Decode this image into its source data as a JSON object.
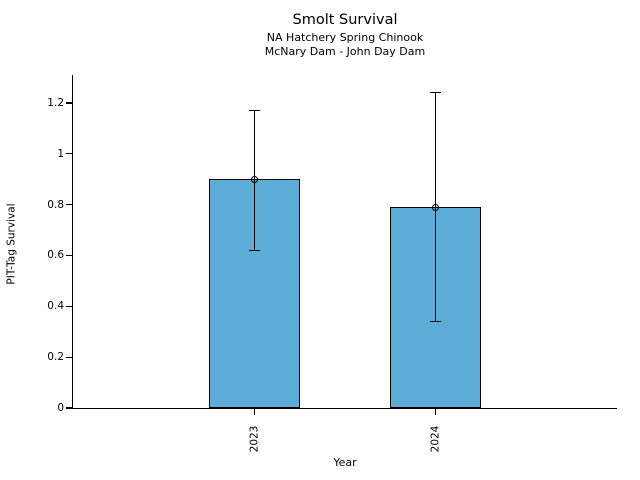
{
  "header": {
    "title": "Smolt Survival",
    "subtitle_line1": "NA Hatchery Spring Chinook",
    "subtitle_line2": "McNary Dam - John Day Dam"
  },
  "chart_data": {
    "type": "bar",
    "title": "Smolt Survival",
    "subtitle": [
      "NA Hatchery Spring Chinook",
      "McNary Dam - John Day Dam"
    ],
    "xlabel": "Year",
    "ylabel": "PIT-Tag Survival",
    "categories": [
      "2023",
      "2024"
    ],
    "values": [
      0.9,
      0.79
    ],
    "error_low": [
      0.62,
      0.34
    ],
    "error_high": [
      1.17,
      1.24
    ],
    "marker": "open-circle",
    "ylim": [
      0,
      1.31
    ],
    "yticks": [
      0,
      0.2,
      0.4,
      0.6,
      0.8,
      1.0,
      1.2
    ],
    "ytick_labels": [
      "0",
      "0.2",
      "0.4",
      "0.6",
      "0.8",
      "1",
      "1.2"
    ],
    "grid": false,
    "legend": null,
    "colors": {
      "bar_fill": "#5BACD6",
      "bar_edge": "#000000",
      "error_bar": "#000000",
      "text": "#000000",
      "background": "#ffffff"
    }
  }
}
